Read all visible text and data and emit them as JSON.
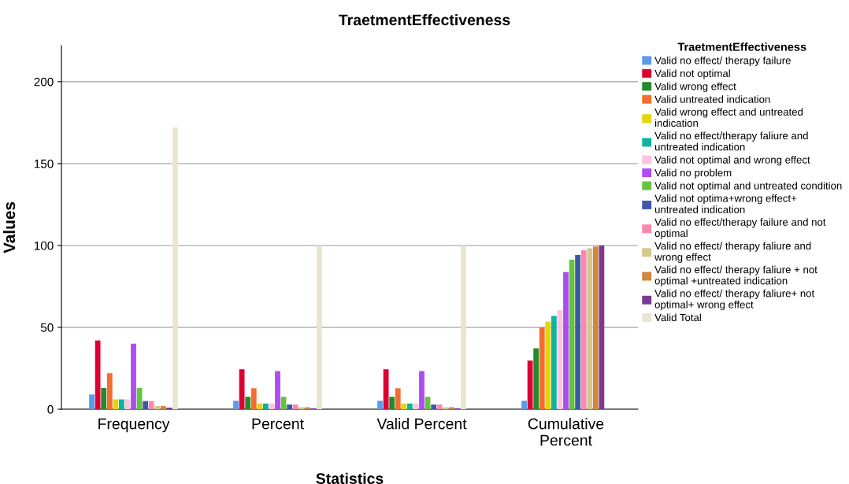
{
  "chart_data": {
    "type": "bar",
    "title": "TraetmentEffectiveness",
    "xlabel": "Statistics",
    "ylabel": "Values",
    "legend_title": "TraetmentEffectiveness",
    "legend": "right",
    "grid": "y",
    "categories": [
      "Frequency",
      "Percent",
      "Valid Percent",
      "Cumulative\nPercent"
    ],
    "ylim": [
      0,
      222
    ],
    "yticks": [
      0,
      50,
      100,
      150,
      200
    ],
    "series": [
      {
        "name": "Valid no effect/ therapy failure",
        "color": "#5b9bea",
        "values": [
          9,
          5.2,
          5.2,
          5.2
        ]
      },
      {
        "name": "Valid not optimal",
        "color": "#dc0032",
        "values": [
          42,
          24.4,
          24.4,
          29.7
        ]
      },
      {
        "name": "Valid wrong effect",
        "color": "#248a2a",
        "values": [
          13,
          7.6,
          7.6,
          37.2
        ]
      },
      {
        "name": "Valid untreated indication",
        "color": "#f46c2e",
        "values": [
          22,
          12.8,
          12.8,
          50.0
        ]
      },
      {
        "name": "Valid wrong effect and untreated\nindication",
        "color": "#e4d60e",
        "values": [
          6,
          3.5,
          3.5,
          53.5
        ]
      },
      {
        "name": "Valid no effect/therapy faliure and\nuntreated indication",
        "color": "#0eb39e",
        "values": [
          6,
          3.5,
          3.5,
          57.0
        ]
      },
      {
        "name": "Valid not optimal and wrong effect",
        "color": "#fdc4df",
        "values": [
          6,
          3.5,
          3.5,
          60.5
        ]
      },
      {
        "name": "Valid no problem",
        "color": "#ad4cf0",
        "values": [
          40,
          23.3,
          23.3,
          83.7
        ]
      },
      {
        "name": "Valid not optimal and untreated condition",
        "color": "#64c53c",
        "values": [
          13,
          7.6,
          7.6,
          91.3
        ]
      },
      {
        "name": "Valid not optima+wrong effect+\nuntreated indication",
        "color": "#3f58a8",
        "values": [
          5,
          2.9,
          2.9,
          94.2
        ]
      },
      {
        "name": "Valid no effect/therapy failure and not\noptimal",
        "color": "#fb87b0",
        "values": [
          5,
          2.9,
          2.9,
          97.1
        ]
      },
      {
        "name": "Valid no effect/ therapy faliure and\nwrong effect",
        "color": "#d4c98a",
        "values": [
          2,
          1.2,
          1.2,
          98.3
        ]
      },
      {
        "name": "Valid no effect/ therapy faliure + not\noptimal +untreated indication",
        "color": "#d0873e",
        "values": [
          2,
          1.2,
          1.2,
          99.4
        ]
      },
      {
        "name": "Valid no effect/ therapy faliure+ not\noptimal+ wrong effect",
        "color": "#7a3a93",
        "values": [
          1,
          0.6,
          0.6,
          100
        ]
      },
      {
        "name": "Valid Total",
        "color": "#ebe4d0",
        "values": [
          172,
          100,
          100,
          null
        ]
      }
    ]
  }
}
